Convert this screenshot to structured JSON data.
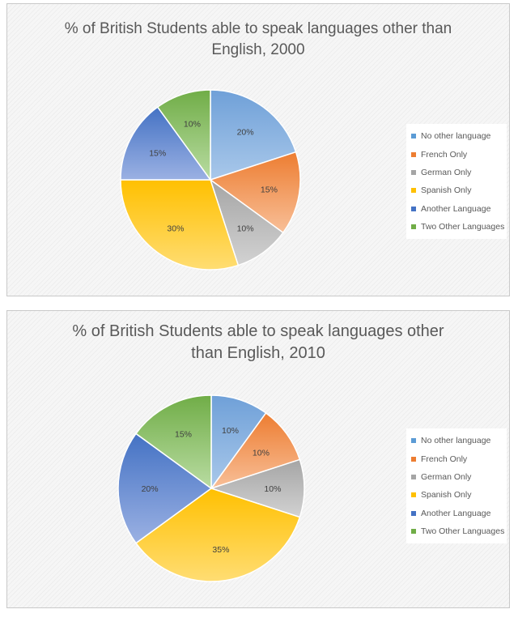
{
  "chart_data": [
    {
      "type": "pie",
      "title": "% of British Students able to speak languages other than English, 2000",
      "title_lines": [
        "% of British Students able to speak languages other than",
        "English, 2000"
      ],
      "categories": [
        "No other language",
        "French Only",
        "German Only",
        "Spanish Only",
        "Another Language",
        "Two Other Languages"
      ],
      "values": [
        20,
        15,
        10,
        30,
        15,
        10
      ],
      "data_labels": [
        "20%",
        "15%",
        "10%",
        "30%",
        "15%",
        "10%"
      ],
      "legend_position": "right"
    },
    {
      "type": "pie",
      "title": "% of British Students able to speak languages other than English, 2010",
      "title_lines": [
        "% of British Students able to speak languages other",
        "than English, 2010"
      ],
      "categories": [
        "No other language",
        "French Only",
        "German Only",
        "Spanish Only",
        "Another Language",
        "Two Other Languages"
      ],
      "values": [
        10,
        10,
        10,
        35,
        20,
        15
      ],
      "data_labels": [
        "10%",
        "10%",
        "10%",
        "35%",
        "20%",
        "15%"
      ],
      "legend_position": "right"
    }
  ],
  "colors": {
    "No other language": {
      "light": "#a9c8ea",
      "dark": "#6fa0d8",
      "swatch": "#5b9bd5"
    },
    "French Only": {
      "light": "#f8bf98",
      "dark": "#ed7d31",
      "swatch": "#ed7d31"
    },
    "German Only": {
      "light": "#d2d2d2",
      "dark": "#a5a5a5",
      "swatch": "#a5a5a5"
    },
    "Spanish Only": {
      "light": "#ffdd73",
      "dark": "#ffc000",
      "swatch": "#ffc000"
    },
    "Another Language": {
      "light": "#9bb1e3",
      "dark": "#4472c4",
      "swatch": "#4472c4"
    },
    "Two Other Languages": {
      "light": "#b9dca2",
      "dark": "#70ad47",
      "swatch": "#70ad47"
    }
  }
}
